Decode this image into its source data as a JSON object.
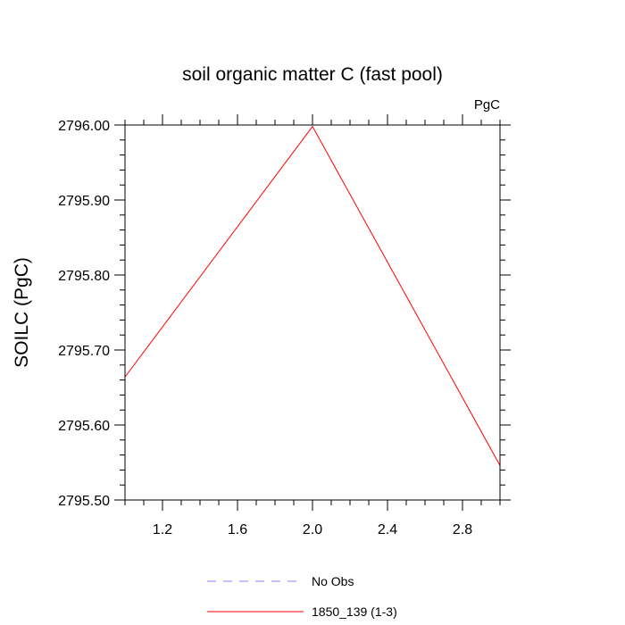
{
  "chart_data": {
    "type": "line",
    "title": "soil organic matter C (fast pool)",
    "units": "PgC",
    "ylabel": "SOILC  (PgC)",
    "xlabel": "",
    "xlim": [
      1.0,
      3.0
    ],
    "ylim": [
      2795.5,
      2796.0
    ],
    "xticks": [
      1.2,
      1.6,
      2.0,
      2.4,
      2.8
    ],
    "xtick_labels": [
      "1.2",
      "1.6",
      "2.0",
      "2.4",
      "2.8"
    ],
    "yticks": [
      2795.5,
      2795.6,
      2795.7,
      2795.8,
      2795.9,
      2796.0
    ],
    "ytick_labels": [
      "2795.50",
      "2795.60",
      "2795.70",
      "2795.80",
      "2795.90",
      "2796.00"
    ],
    "grid": false,
    "legend_position": "bottom",
    "series": [
      {
        "name": "No Obs",
        "color": "#8080ff",
        "dashed": true,
        "x": [],
        "y": []
      },
      {
        "name": "1850_139 (1-3)",
        "color": "#ff0000",
        "dashed": false,
        "x": [
          1,
          2,
          3
        ],
        "y": [
          2795.664,
          2795.998,
          2795.546
        ]
      }
    ]
  }
}
